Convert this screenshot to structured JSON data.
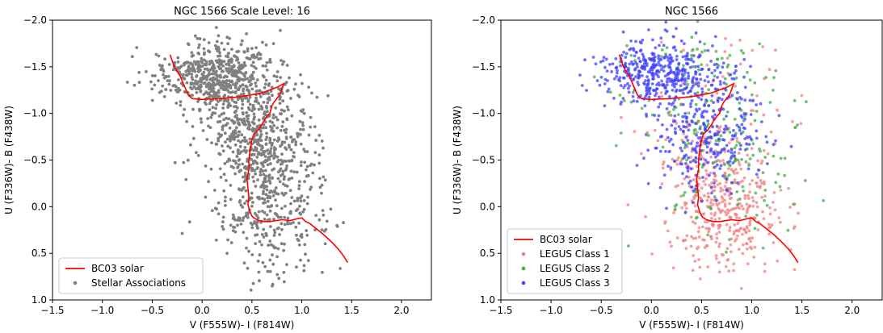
{
  "chart_data": [
    {
      "type": "scatter",
      "title": "NGC 1566  Scale Level: 16",
      "xlabel": "V (F555W)- I (F814W)",
      "ylabel": "U (F336W)- B (F438W)",
      "xlim": [
        -1.5,
        2.3
      ],
      "ylim": [
        -2.0,
        1.0
      ],
      "y_inverted": true,
      "xticks": [
        -1.5,
        -1.0,
        -0.5,
        0.0,
        0.5,
        1.0,
        1.5,
        2.0
      ],
      "xtick_labels": [
        "−1.5",
        "−1.0",
        "−0.5",
        "0.0",
        "0.5",
        "1.0",
        "1.5",
        "2.0"
      ],
      "yticks": [
        -2.0,
        -1.5,
        -1.0,
        -0.5,
        0.0,
        0.5,
        1.0
      ],
      "ytick_labels": [
        "−2.0",
        "−1.5",
        "−1.0",
        "−0.5",
        "0.0",
        "0.5",
        "1.0"
      ],
      "legend_position": "lower-left",
      "series": [
        {
          "name": "BC03 solar",
          "kind": "line",
          "color": "#ff0000",
          "x": [
            -0.32,
            -0.28,
            -0.22,
            -0.18,
            -0.14,
            -0.1,
            0.0,
            0.2,
            0.4,
            0.6,
            0.75,
            0.82,
            0.78,
            0.72,
            0.7,
            0.68,
            0.66,
            0.62,
            0.6,
            0.56,
            0.52,
            0.5,
            0.48,
            0.47,
            0.47,
            0.45,
            0.46,
            0.47,
            0.46,
            0.48,
            0.5,
            0.52,
            0.55,
            0.58,
            0.62,
            0.68,
            0.74,
            0.8,
            0.88,
            0.95,
            1.0,
            1.02,
            1.04,
            1.08,
            1.15,
            1.22,
            1.3,
            1.37,
            1.42,
            1.46
          ],
          "y": [
            -1.63,
            -1.5,
            -1.4,
            -1.3,
            -1.2,
            -1.16,
            -1.15,
            -1.16,
            -1.18,
            -1.22,
            -1.28,
            -1.32,
            -1.2,
            -1.12,
            -1.08,
            -1.0,
            -0.98,
            -0.92,
            -0.88,
            -0.82,
            -0.78,
            -0.72,
            -0.6,
            -0.5,
            -0.4,
            -0.3,
            -0.2,
            -0.1,
            -0.02,
            0.05,
            0.1,
            0.12,
            0.14,
            0.15,
            0.16,
            0.16,
            0.15,
            0.14,
            0.15,
            0.13,
            0.12,
            0.14,
            0.16,
            0.18,
            0.24,
            0.3,
            0.38,
            0.46,
            0.53,
            0.6
          ]
        },
        {
          "name": "Stellar Associations",
          "kind": "scatter",
          "color": "#808080",
          "n_points": 1400,
          "clusters": [
            {
              "weight": 0.4,
              "x_mean": 0.15,
              "x_sd": 0.3,
              "y_mean": -1.4,
              "y_sd": 0.18
            },
            {
              "weight": 0.35,
              "x_mean": 0.55,
              "x_sd": 0.28,
              "y_mean": -0.75,
              "y_sd": 0.3
            },
            {
              "weight": 0.25,
              "x_mean": 0.7,
              "x_sd": 0.28,
              "y_mean": 0.05,
              "y_sd": 0.35
            }
          ]
        }
      ]
    },
    {
      "type": "scatter",
      "title": "NGC 1566",
      "xlabel": "V (F555W)- I (F814W)",
      "ylabel": "U (F336W)- B (F438W)",
      "xlim": [
        -1.5,
        2.3
      ],
      "ylim": [
        -2.0,
        1.0
      ],
      "y_inverted": true,
      "xticks": [
        -1.5,
        -1.0,
        -0.5,
        0.0,
        0.5,
        1.0,
        1.5,
        2.0
      ],
      "xtick_labels": [
        "−1.5",
        "−1.0",
        "−0.5",
        "0.0",
        "0.5",
        "1.0",
        "1.5",
        "2.0"
      ],
      "yticks": [
        -2.0,
        -1.5,
        -1.0,
        -0.5,
        0.0,
        0.5,
        1.0
      ],
      "ytick_labels": [
        "−2.0",
        "−1.5",
        "−1.0",
        "−0.5",
        "0.0",
        "0.5",
        "1.0"
      ],
      "legend_position": "lower-left",
      "series": [
        {
          "name": "BC03 solar",
          "kind": "line",
          "color": "#ff0000",
          "x": [
            -0.32,
            -0.28,
            -0.22,
            -0.18,
            -0.14,
            -0.1,
            0.0,
            0.2,
            0.4,
            0.6,
            0.75,
            0.82,
            0.78,
            0.72,
            0.7,
            0.68,
            0.66,
            0.62,
            0.6,
            0.56,
            0.52,
            0.5,
            0.48,
            0.47,
            0.47,
            0.45,
            0.46,
            0.47,
            0.46,
            0.48,
            0.5,
            0.52,
            0.55,
            0.58,
            0.62,
            0.68,
            0.74,
            0.8,
            0.88,
            0.95,
            1.0,
            1.02,
            1.04,
            1.08,
            1.15,
            1.22,
            1.3,
            1.37,
            1.42,
            1.46
          ],
          "y": [
            -1.63,
            -1.5,
            -1.4,
            -1.3,
            -1.2,
            -1.16,
            -1.15,
            -1.16,
            -1.18,
            -1.22,
            -1.28,
            -1.32,
            -1.2,
            -1.12,
            -1.08,
            -1.0,
            -0.98,
            -0.92,
            -0.88,
            -0.82,
            -0.78,
            -0.72,
            -0.6,
            -0.5,
            -0.4,
            -0.3,
            -0.2,
            -0.1,
            -0.02,
            0.05,
            0.1,
            0.12,
            0.14,
            0.15,
            0.16,
            0.16,
            0.15,
            0.14,
            0.15,
            0.13,
            0.12,
            0.14,
            0.16,
            0.18,
            0.24,
            0.3,
            0.38,
            0.46,
            0.53,
            0.6
          ]
        },
        {
          "name": "LEGUS Class 1",
          "kind": "scatter",
          "color": "#f08080",
          "n_points": 500,
          "clusters": [
            {
              "weight": 0.75,
              "x_mean": 0.75,
              "x_sd": 0.28,
              "y_mean": 0.0,
              "y_sd": 0.35
            },
            {
              "weight": 0.25,
              "x_mean": 0.6,
              "x_sd": 0.35,
              "y_mean": -0.8,
              "y_sd": 0.45
            }
          ]
        },
        {
          "name": "LEGUS Class 2",
          "kind": "scatter",
          "color": "#3cb043",
          "n_points": 220,
          "clusters": [
            {
              "weight": 0.5,
              "x_mean": 0.5,
              "x_sd": 0.45,
              "y_mean": -1.3,
              "y_sd": 0.3
            },
            {
              "weight": 0.5,
              "x_mean": 0.75,
              "x_sd": 0.35,
              "y_mean": -0.4,
              "y_sd": 0.45
            }
          ]
        },
        {
          "name": "LEGUS Class 3",
          "kind": "scatter",
          "color": "#4040ff",
          "n_points": 700,
          "clusters": [
            {
              "weight": 0.6,
              "x_mean": 0.1,
              "x_sd": 0.3,
              "y_mean": -1.45,
              "y_sd": 0.17
            },
            {
              "weight": 0.4,
              "x_mean": 0.55,
              "x_sd": 0.3,
              "y_mean": -0.75,
              "y_sd": 0.3
            }
          ]
        }
      ]
    }
  ]
}
